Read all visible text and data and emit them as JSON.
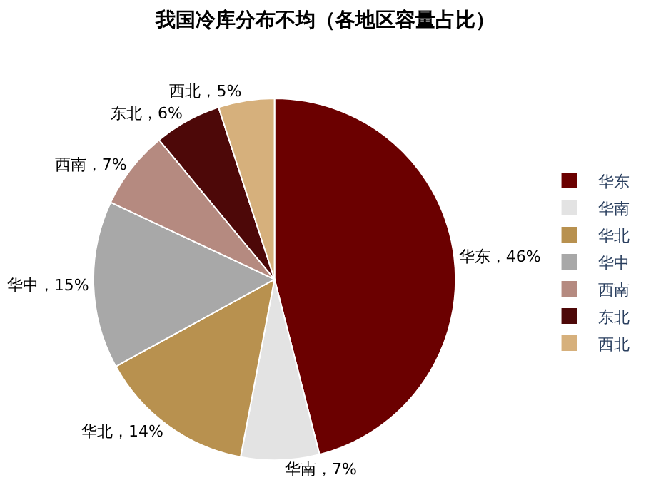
{
  "chart_data": {
    "type": "pie",
    "title": "我国冷库分布不均（各地区容量占比）",
    "categories": [
      "华东",
      "华南",
      "华北",
      "华中",
      "西南",
      "东北",
      "西北"
    ],
    "values": [
      46,
      7,
      14,
      15,
      7,
      6,
      5
    ],
    "colors": [
      "#6b0000",
      "#e3e3e3",
      "#b8914f",
      "#a8a8a8",
      "#b58a80",
      "#4d0808",
      "#d6b07c"
    ],
    "value_labels": [
      "华东，46%",
      "华南，7%",
      "华北，14%",
      "华中，15%",
      "西南，7%",
      "东北，6%",
      "西北，5%"
    ],
    "legend": "right"
  }
}
